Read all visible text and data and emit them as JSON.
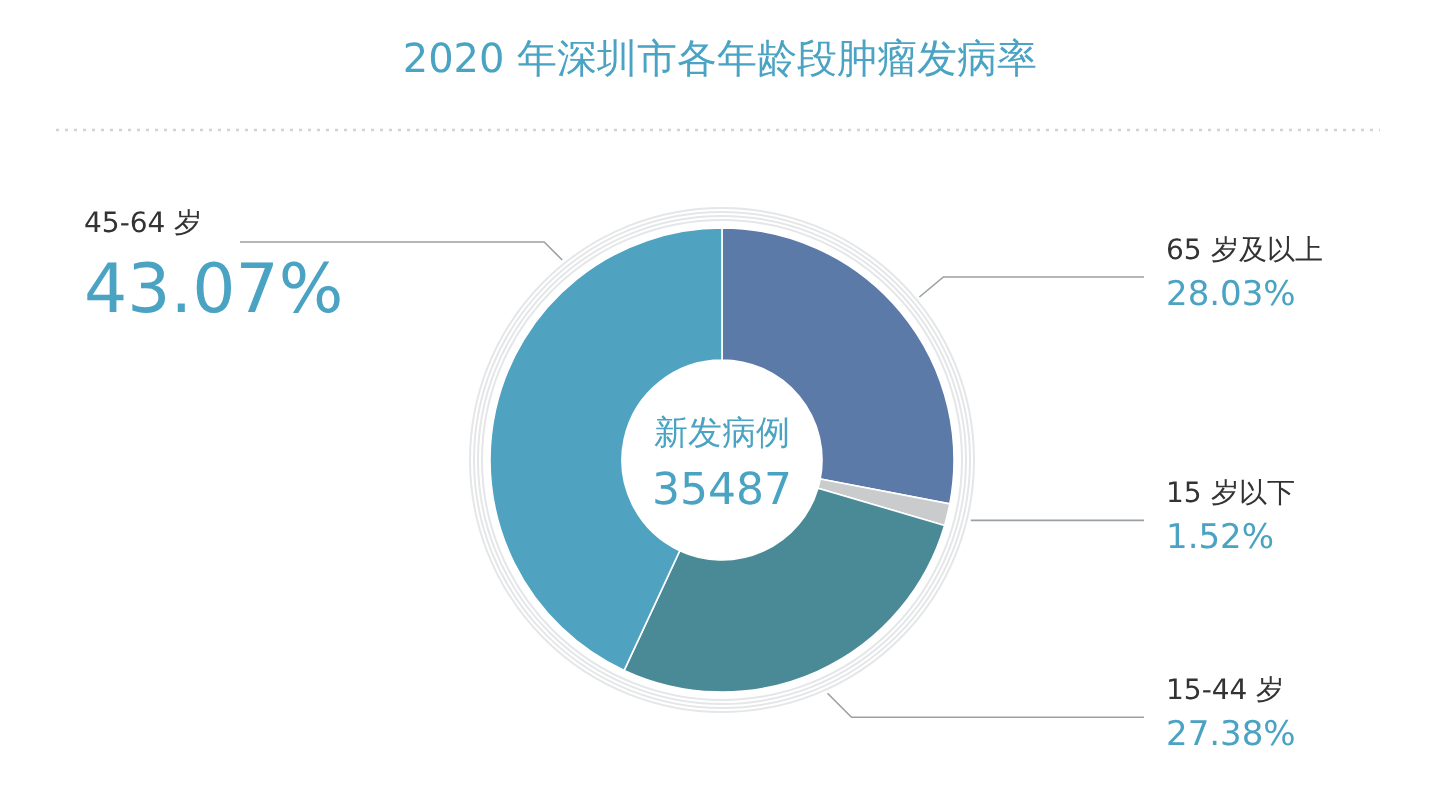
{
  "chart_data": {
    "type": "donut",
    "title": "2020 年深圳市各年龄段肿瘤发病率",
    "categories": [
      "65 岁及以上",
      "15 岁以下",
      "15-44 岁",
      "45-64 岁"
    ],
    "values": [
      28.03,
      1.52,
      27.38,
      43.07
    ],
    "colors": [
      "#5b7aa8",
      "#c9cbcc",
      "#4a8a96",
      "#4fa3c0"
    ],
    "value_labels": [
      "28.03%",
      "1.52%",
      "27.38%",
      "43.07%"
    ],
    "annotations": [
      "新发病例",
      "35487"
    ]
  }
}
